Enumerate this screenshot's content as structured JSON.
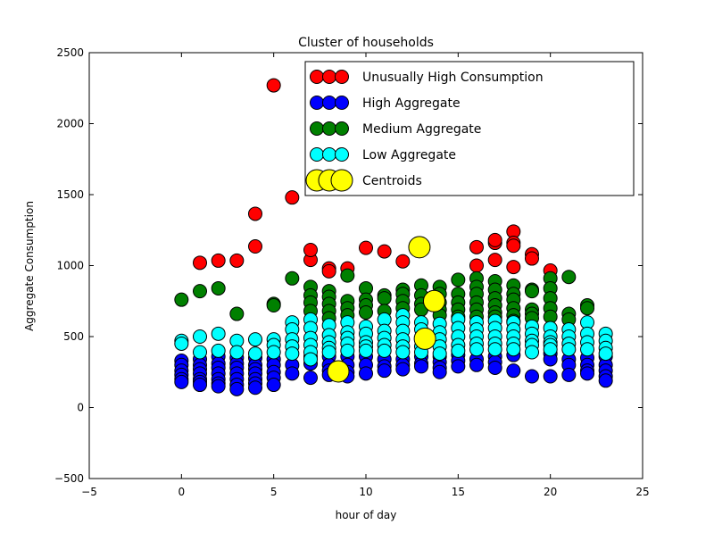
{
  "chart_data": {
    "type": "scatter",
    "title": "Cluster of households",
    "xlabel": "hour of day",
    "ylabel": "Aggregate Consumption",
    "xlim": [
      -5,
      25
    ],
    "ylim": [
      -500,
      2500
    ],
    "xticks": [
      -5,
      0,
      5,
      10,
      15,
      20,
      25
    ],
    "yticks": [
      -500,
      0,
      500,
      1000,
      1500,
      2000,
      2500
    ],
    "xtick_labels": [
      "−5",
      "0",
      "5",
      "10",
      "15",
      "20",
      "25"
    ],
    "ytick_labels": [
      "−500",
      "0",
      "500",
      "1000",
      "1500",
      "2000",
      "2500"
    ],
    "grid": false,
    "legend_position": "upper right",
    "series": [
      {
        "name": "Unusually High Consumption",
        "color": "#ff0000",
        "points": [
          [
            1,
            1020
          ],
          [
            2,
            1035
          ],
          [
            3,
            1035
          ],
          [
            4,
            1135
          ],
          [
            4,
            1365
          ],
          [
            5,
            2270
          ],
          [
            6,
            1480
          ],
          [
            7,
            1040
          ],
          [
            7,
            1110
          ],
          [
            8,
            980
          ],
          [
            8,
            960
          ],
          [
            9,
            980
          ],
          [
            10,
            1125
          ],
          [
            11,
            1100
          ],
          [
            12,
            1030
          ],
          [
            16,
            1000
          ],
          [
            16,
            1130
          ],
          [
            17,
            1040
          ],
          [
            17,
            1160
          ],
          [
            17,
            1180
          ],
          [
            18,
            1240
          ],
          [
            18,
            1160
          ],
          [
            18,
            1140
          ],
          [
            18,
            990
          ],
          [
            19,
            1080
          ],
          [
            19,
            1050
          ],
          [
            20,
            965
          ]
        ]
      },
      {
        "name": "High Aggregate",
        "color": "#0000ff",
        "points": [
          [
            0,
            330
          ],
          [
            0,
            300
          ],
          [
            0,
            260
          ],
          [
            0,
            230
          ],
          [
            0,
            200
          ],
          [
            0,
            180
          ],
          [
            1,
            340
          ],
          [
            1,
            300
          ],
          [
            1,
            270
          ],
          [
            1,
            240
          ],
          [
            1,
            200
          ],
          [
            1,
            180
          ],
          [
            1,
            160
          ],
          [
            2,
            360
          ],
          [
            2,
            310
          ],
          [
            2,
            280
          ],
          [
            2,
            240
          ],
          [
            2,
            200
          ],
          [
            2,
            170
          ],
          [
            2,
            150
          ],
          [
            3,
            350
          ],
          [
            3,
            310
          ],
          [
            3,
            280
          ],
          [
            3,
            240
          ],
          [
            3,
            200
          ],
          [
            3,
            160
          ],
          [
            3,
            130
          ],
          [
            4,
            350
          ],
          [
            4,
            300
          ],
          [
            4,
            270
          ],
          [
            4,
            240
          ],
          [
            4,
            200
          ],
          [
            4,
            170
          ],
          [
            4,
            140
          ],
          [
            5,
            340
          ],
          [
            5,
            300
          ],
          [
            5,
            250
          ],
          [
            5,
            210
          ],
          [
            5,
            160
          ],
          [
            6,
            300
          ],
          [
            6,
            240
          ],
          [
            7,
            360
          ],
          [
            7,
            310
          ],
          [
            7,
            210
          ],
          [
            8,
            360
          ],
          [
            8,
            300
          ],
          [
            8,
            260
          ],
          [
            8,
            230
          ],
          [
            9,
            360
          ],
          [
            9,
            300
          ],
          [
            9,
            250
          ],
          [
            9,
            220
          ],
          [
            10,
            360
          ],
          [
            10,
            300
          ],
          [
            10,
            240
          ],
          [
            11,
            340
          ],
          [
            11,
            290
          ],
          [
            11,
            260
          ],
          [
            12,
            340
          ],
          [
            12,
            300
          ],
          [
            12,
            270
          ],
          [
            13,
            360
          ],
          [
            13,
            310
          ],
          [
            13,
            290
          ],
          [
            14,
            360
          ],
          [
            14,
            320
          ],
          [
            14,
            280
          ],
          [
            14,
            250
          ],
          [
            15,
            370
          ],
          [
            15,
            330
          ],
          [
            15,
            290
          ],
          [
            16,
            340
          ],
          [
            16,
            300
          ],
          [
            17,
            360
          ],
          [
            17,
            320
          ],
          [
            17,
            280
          ],
          [
            18,
            370
          ],
          [
            18,
            260
          ],
          [
            19,
            220
          ],
          [
            20,
            380
          ],
          [
            20,
            340
          ],
          [
            20,
            220
          ],
          [
            21,
            340
          ],
          [
            21,
            300
          ],
          [
            21,
            230
          ],
          [
            22,
            350
          ],
          [
            22,
            300
          ],
          [
            22,
            260
          ],
          [
            22,
            240
          ],
          [
            23,
            360
          ],
          [
            23,
            300
          ],
          [
            23,
            260
          ],
          [
            23,
            220
          ],
          [
            23,
            190
          ]
        ]
      },
      {
        "name": "Medium Aggregate",
        "color": "#008000",
        "points": [
          [
            0,
            760
          ],
          [
            1,
            820
          ],
          [
            2,
            840
          ],
          [
            3,
            660
          ],
          [
            5,
            730
          ],
          [
            5,
            720
          ],
          [
            6,
            910
          ],
          [
            7,
            850
          ],
          [
            7,
            790
          ],
          [
            7,
            740
          ],
          [
            7,
            680
          ],
          [
            8,
            820
          ],
          [
            8,
            780
          ],
          [
            8,
            730
          ],
          [
            8,
            680
          ],
          [
            8,
            630
          ],
          [
            9,
            930
          ],
          [
            9,
            750
          ],
          [
            9,
            700
          ],
          [
            9,
            650
          ],
          [
            10,
            840
          ],
          [
            10,
            760
          ],
          [
            10,
            720
          ],
          [
            10,
            670
          ],
          [
            11,
            790
          ],
          [
            11,
            770
          ],
          [
            11,
            680
          ],
          [
            12,
            830
          ],
          [
            12,
            800
          ],
          [
            12,
            750
          ],
          [
            12,
            700
          ],
          [
            13,
            860
          ],
          [
            13,
            790
          ],
          [
            13,
            730
          ],
          [
            13,
            690
          ],
          [
            14,
            850
          ],
          [
            14,
            800
          ],
          [
            14,
            740
          ],
          [
            14,
            690
          ],
          [
            14,
            650
          ],
          [
            15,
            900
          ],
          [
            15,
            800
          ],
          [
            15,
            740
          ],
          [
            15,
            690
          ],
          [
            15,
            640
          ],
          [
            16,
            910
          ],
          [
            16,
            850
          ],
          [
            16,
            800
          ],
          [
            16,
            740
          ],
          [
            16,
            690
          ],
          [
            16,
            640
          ],
          [
            17,
            890
          ],
          [
            17,
            830
          ],
          [
            17,
            770
          ],
          [
            17,
            720
          ],
          [
            17,
            670
          ],
          [
            17,
            640
          ],
          [
            18,
            860
          ],
          [
            18,
            800
          ],
          [
            18,
            760
          ],
          [
            18,
            700
          ],
          [
            18,
            650
          ],
          [
            18,
            610
          ],
          [
            19,
            830
          ],
          [
            19,
            820
          ],
          [
            19,
            690
          ],
          [
            19,
            660
          ],
          [
            19,
            630
          ],
          [
            20,
            910
          ],
          [
            20,
            840
          ],
          [
            20,
            770
          ],
          [
            20,
            700
          ],
          [
            20,
            640
          ],
          [
            21,
            920
          ],
          [
            21,
            660
          ],
          [
            21,
            620
          ],
          [
            22,
            720
          ],
          [
            22,
            700
          ]
        ]
      },
      {
        "name": "Low Aggregate",
        "color": "#00ffff",
        "points": [
          [
            0,
            470
          ],
          [
            0,
            450
          ],
          [
            1,
            500
          ],
          [
            1,
            390
          ],
          [
            2,
            520
          ],
          [
            2,
            400
          ],
          [
            3,
            470
          ],
          [
            3,
            390
          ],
          [
            4,
            480
          ],
          [
            4,
            380
          ],
          [
            5,
            480
          ],
          [
            5,
            440
          ],
          [
            5,
            390
          ],
          [
            6,
            600
          ],
          [
            6,
            550
          ],
          [
            6,
            480
          ],
          [
            6,
            430
          ],
          [
            6,
            380
          ],
          [
            7,
            620
          ],
          [
            7,
            560
          ],
          [
            7,
            490
          ],
          [
            7,
            440
          ],
          [
            7,
            390
          ],
          [
            7,
            340
          ],
          [
            8,
            580
          ],
          [
            8,
            510
          ],
          [
            8,
            460
          ],
          [
            8,
            420
          ],
          [
            8,
            390
          ],
          [
            9,
            600
          ],
          [
            9,
            530
          ],
          [
            9,
            490
          ],
          [
            9,
            450
          ],
          [
            9,
            400
          ],
          [
            10,
            570
          ],
          [
            10,
            520
          ],
          [
            10,
            460
          ],
          [
            10,
            430
          ],
          [
            10,
            400
          ],
          [
            11,
            620
          ],
          [
            11,
            540
          ],
          [
            11,
            490
          ],
          [
            11,
            440
          ],
          [
            11,
            400
          ],
          [
            12,
            650
          ],
          [
            12,
            600
          ],
          [
            12,
            540
          ],
          [
            12,
            480
          ],
          [
            12,
            430
          ],
          [
            12,
            390
          ],
          [
            13,
            600
          ],
          [
            13,
            550
          ],
          [
            13,
            480
          ],
          [
            13,
            430
          ],
          [
            13,
            390
          ],
          [
            14,
            590
          ],
          [
            14,
            530
          ],
          [
            14,
            480
          ],
          [
            14,
            430
          ],
          [
            14,
            380
          ],
          [
            15,
            620
          ],
          [
            15,
            560
          ],
          [
            15,
            500
          ],
          [
            15,
            440
          ],
          [
            15,
            400
          ],
          [
            16,
            600
          ],
          [
            16,
            550
          ],
          [
            16,
            500
          ],
          [
            16,
            450
          ],
          [
            16,
            410
          ],
          [
            17,
            610
          ],
          [
            17,
            560
          ],
          [
            17,
            500
          ],
          [
            17,
            450
          ],
          [
            17,
            410
          ],
          [
            18,
            600
          ],
          [
            18,
            550
          ],
          [
            18,
            500
          ],
          [
            18,
            450
          ],
          [
            18,
            410
          ],
          [
            19,
            570
          ],
          [
            19,
            520
          ],
          [
            19,
            470
          ],
          [
            19,
            440
          ],
          [
            19,
            390
          ],
          [
            20,
            560
          ],
          [
            20,
            500
          ],
          [
            20,
            460
          ],
          [
            20,
            440
          ],
          [
            20,
            410
          ],
          [
            21,
            550
          ],
          [
            21,
            500
          ],
          [
            21,
            450
          ],
          [
            21,
            410
          ],
          [
            22,
            600
          ],
          [
            22,
            520
          ],
          [
            22,
            460
          ],
          [
            22,
            410
          ],
          [
            23,
            520
          ],
          [
            23,
            470
          ],
          [
            23,
            420
          ],
          [
            23,
            380
          ]
        ]
      },
      {
        "name": "Centroids",
        "color": "#ffff00",
        "points": [
          [
            8.5,
            255
          ],
          [
            12.9,
            1130
          ],
          [
            13.7,
            750
          ],
          [
            13.2,
            485
          ]
        ]
      }
    ]
  }
}
